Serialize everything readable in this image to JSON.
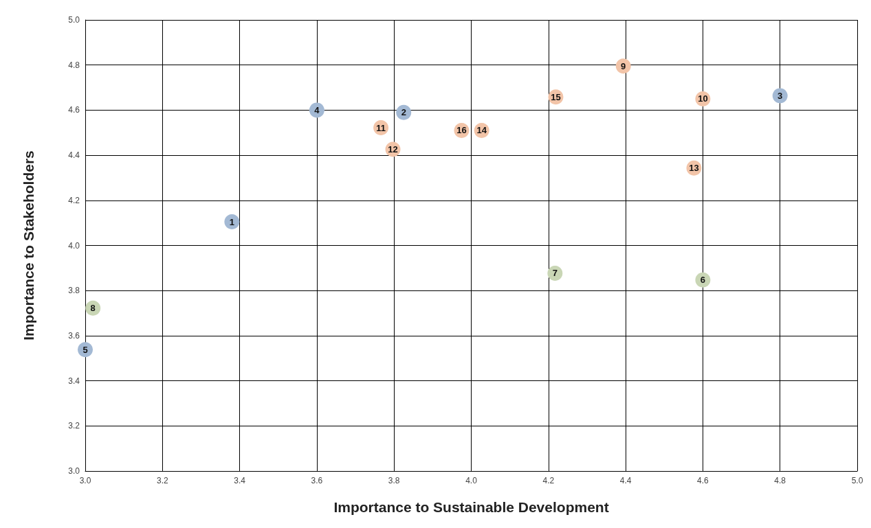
{
  "chart_data": {
    "type": "scatter",
    "xlabel": "Importance to Sustainable Development",
    "ylabel": "Importance to Stakeholders",
    "series": [
      {
        "color": "#a3b9d4",
        "x": [
          3.38,
          3.825,
          4.8,
          3.6,
          3.0
        ],
        "values": [
          4.105,
          4.59,
          4.664,
          4.6,
          3.538
        ]
      },
      {
        "color": "#c9d6b5",
        "x": [
          4.6,
          4.217,
          3.02
        ],
        "values": [
          3.847,
          3.877,
          3.722
        ]
      },
      {
        "color": "#f2c4a8",
        "x": [
          4.394,
          4.6,
          3.766,
          3.797,
          4.577,
          4.027,
          4.219,
          3.975
        ],
        "values": [
          4.795,
          4.65,
          4.522,
          4.426,
          4.343,
          4.51,
          4.658,
          4.51
        ]
      }
    ],
    "annotations": [
      {
        "text": "1",
        "x": 3.38,
        "y": 4.105
      },
      {
        "text": "2",
        "x": 3.825,
        "y": 4.59
      },
      {
        "text": "3",
        "x": 4.8,
        "y": 4.664
      },
      {
        "text": "4",
        "x": 3.6,
        "y": 4.6
      },
      {
        "text": "5",
        "x": 3.0,
        "y": 3.538
      },
      {
        "text": "6",
        "x": 4.6,
        "y": 3.847
      },
      {
        "text": "7",
        "x": 4.217,
        "y": 3.877
      },
      {
        "text": "8",
        "x": 3.02,
        "y": 3.722
      },
      {
        "text": "9",
        "x": 4.394,
        "y": 4.795
      },
      {
        "text": "10",
        "x": 4.6,
        "y": 4.65
      },
      {
        "text": "11",
        "x": 3.766,
        "y": 4.522
      },
      {
        "text": "12",
        "x": 3.797,
        "y": 4.426
      },
      {
        "text": "13",
        "x": 4.577,
        "y": 4.343
      },
      {
        "text": "14",
        "x": 4.027,
        "y": 4.51
      },
      {
        "text": "15",
        "x": 4.219,
        "y": 4.658
      },
      {
        "text": "16",
        "x": 3.975,
        "y": 4.51
      }
    ],
    "xlim": [
      3.0,
      5.0
    ],
    "ylim": [
      3.0,
      5.0
    ],
    "xticks": [
      {
        "value": 3,
        "label": "3.0"
      },
      {
        "value": 3.2,
        "label": "3.2"
      },
      {
        "value": 3.4,
        "label": "3.4"
      },
      {
        "value": 3.6,
        "label": "3.6"
      },
      {
        "value": 3.8,
        "label": "3.8"
      },
      {
        "value": 4,
        "label": "4.0"
      },
      {
        "value": 4.2,
        "label": "4.2"
      },
      {
        "value": 4.4,
        "label": "4.4"
      },
      {
        "value": 4.6,
        "label": "4.6"
      },
      {
        "value": 4.8,
        "label": "4.8"
      },
      {
        "value": 5,
        "label": "5.0"
      }
    ],
    "yticks": [
      {
        "value": 3,
        "label": "3.0"
      },
      {
        "value": 3.2,
        "label": "3.2"
      },
      {
        "value": 3.4,
        "label": "3.4"
      },
      {
        "value": 3.6,
        "label": "3.6"
      },
      {
        "value": 3.8,
        "label": "3.8"
      },
      {
        "value": 4,
        "label": "4.0"
      },
      {
        "value": 4.2,
        "label": "4.2"
      },
      {
        "value": 4.4,
        "label": "4.4"
      },
      {
        "value": 4.6,
        "label": "4.6"
      },
      {
        "value": 4.8,
        "label": "4.8"
      },
      {
        "value": 5,
        "label": "5.0"
      }
    ],
    "grid": true,
    "marker": "circle"
  }
}
